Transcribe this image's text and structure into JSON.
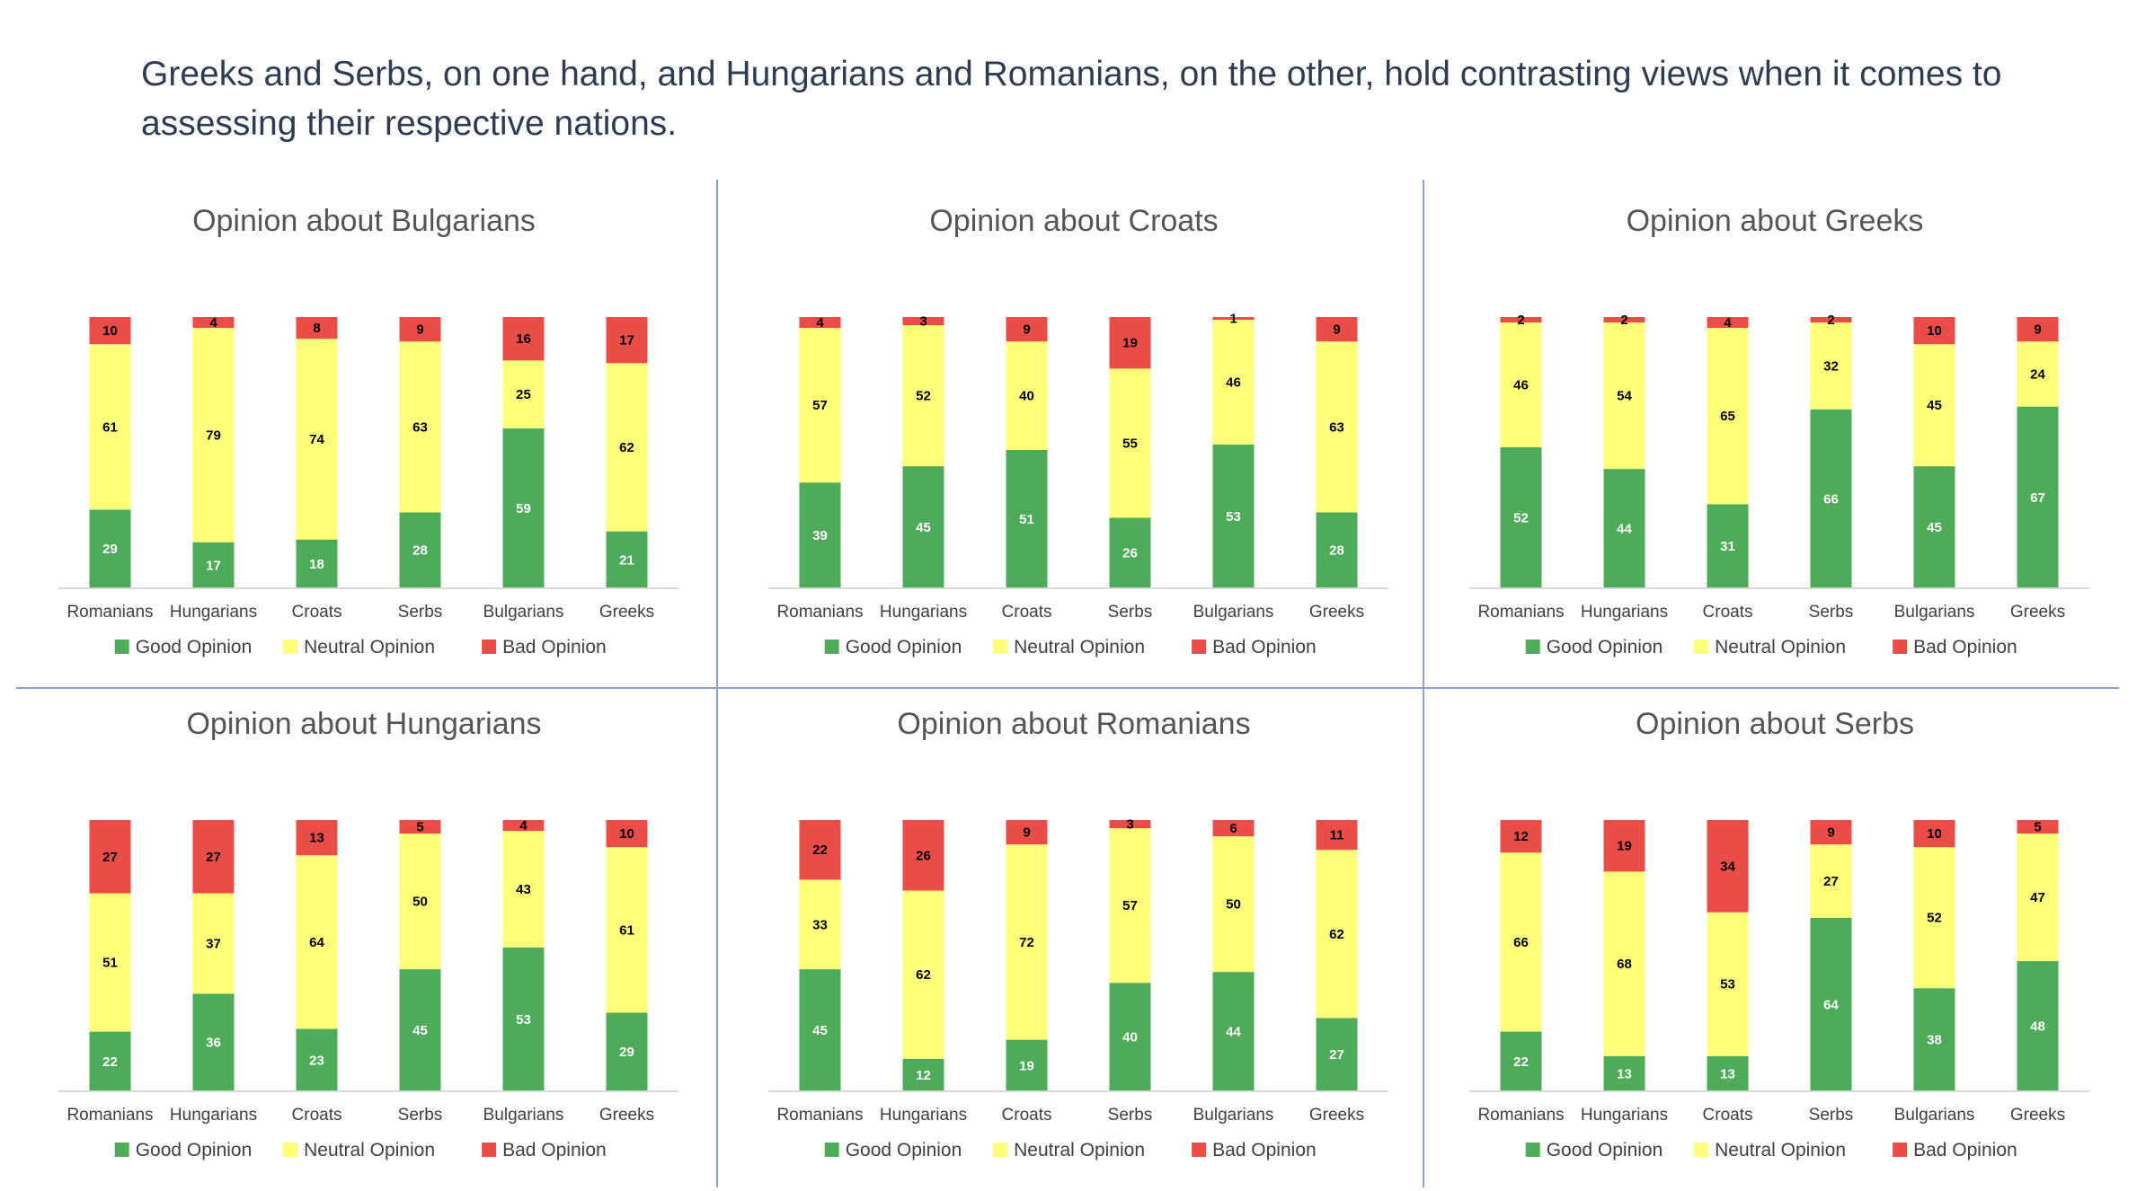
{
  "headline": "Greeks and Serbs, on one hand, and Hungarians and Romanians, on the other, hold contrasting views when it comes to assessing their respective nations.",
  "colors": {
    "good": "#4eab59",
    "neutral": "#ffff79",
    "bad": "#ea4c48",
    "title": "#555555",
    "axis_text": "#404040",
    "divider": "#8ea2cf"
  },
  "chart_data": [
    {
      "type": "bar",
      "stacked": true,
      "title": "Opinion about Bulgarians",
      "categories": [
        "Romanians",
        "Hungarians",
        "Croats",
        "Serbs",
        "Bulgarians",
        "Greeks"
      ],
      "series": [
        {
          "name": "Good Opinion",
          "values": [
            29,
            17,
            18,
            28,
            59,
            21
          ]
        },
        {
          "name": "Neutral Opinion",
          "values": [
            61,
            79,
            74,
            63,
            25,
            62
          ]
        },
        {
          "name": "Bad Opinion",
          "values": [
            10,
            4,
            8,
            9,
            16,
            17
          ]
        }
      ],
      "legend": "bottom"
    },
    {
      "type": "bar",
      "stacked": true,
      "title": "Opinion about Croats",
      "categories": [
        "Romanians",
        "Hungarians",
        "Croats",
        "Serbs",
        "Bulgarians",
        "Greeks"
      ],
      "series": [
        {
          "name": "Good Opinion",
          "values": [
            39,
            45,
            51,
            26,
            53,
            28
          ]
        },
        {
          "name": "Neutral Opinion",
          "values": [
            57,
            52,
            40,
            55,
            46,
            63
          ]
        },
        {
          "name": "Bad Opinion",
          "values": [
            4,
            3,
            9,
            19,
            1,
            9
          ]
        }
      ],
      "legend": "bottom"
    },
    {
      "type": "bar",
      "stacked": true,
      "title": "Opinion about Greeks",
      "categories": [
        "Romanians",
        "Hungarians",
        "Croats",
        "Serbs",
        "Bulgarians",
        "Greeks"
      ],
      "series": [
        {
          "name": "Good Opinion",
          "values": [
            52,
            44,
            31,
            66,
            45,
            67
          ]
        },
        {
          "name": "Neutral Opinion",
          "values": [
            46,
            54,
            65,
            32,
            45,
            24
          ]
        },
        {
          "name": "Bad Opinion",
          "values": [
            2,
            2,
            4,
            2,
            10,
            9
          ]
        }
      ],
      "legend": "bottom"
    },
    {
      "type": "bar",
      "stacked": true,
      "title": "Opinion about Hungarians",
      "categories": [
        "Romanians",
        "Hungarians",
        "Croats",
        "Serbs",
        "Bulgarians",
        "Greeks"
      ],
      "series": [
        {
          "name": "Good Opinion",
          "values": [
            22,
            36,
            23,
            45,
            53,
            29
          ]
        },
        {
          "name": "Neutral Opinion",
          "values": [
            51,
            37,
            64,
            50,
            43,
            61
          ]
        },
        {
          "name": "Bad Opinion",
          "values": [
            27,
            27,
            13,
            5,
            4,
            10
          ]
        }
      ],
      "legend": "bottom"
    },
    {
      "type": "bar",
      "stacked": true,
      "title": "Opinion about Romanians",
      "categories": [
        "Romanians",
        "Hungarians",
        "Croats",
        "Serbs",
        "Bulgarians",
        "Greeks"
      ],
      "series": [
        {
          "name": "Good Opinion",
          "values": [
            45,
            12,
            19,
            40,
            44,
            27
          ]
        },
        {
          "name": "Neutral Opinion",
          "values": [
            33,
            62,
            72,
            57,
            50,
            62
          ]
        },
        {
          "name": "Bad Opinion",
          "values": [
            22,
            26,
            9,
            3,
            6,
            11
          ]
        }
      ],
      "legend": "bottom"
    },
    {
      "type": "bar",
      "stacked": true,
      "title": "Opinion about Serbs",
      "categories": [
        "Romanians",
        "Hungarians",
        "Croats",
        "Serbs",
        "Bulgarians",
        "Greeks"
      ],
      "series": [
        {
          "name": "Good Opinion",
          "values": [
            22,
            13,
            13,
            64,
            38,
            48
          ]
        },
        {
          "name": "Neutral Opinion",
          "values": [
            66,
            68,
            53,
            27,
            52,
            47
          ]
        },
        {
          "name": "Bad Opinion",
          "values": [
            12,
            19,
            34,
            9,
            10,
            5
          ]
        }
      ],
      "legend": "bottom"
    }
  ]
}
